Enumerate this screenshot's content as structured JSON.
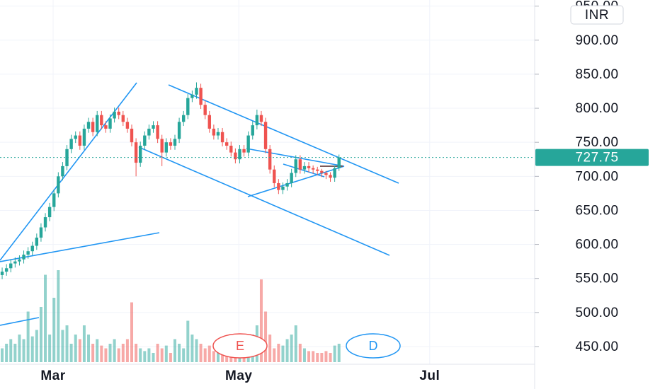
{
  "chart_data": {
    "type": "candlestick",
    "currency": "INR",
    "events": [
      "E",
      "D"
    ],
    "up_color": "#26a69a",
    "down_color": "#ef5350",
    "grid": true,
    "x": [
      0,
      1,
      2,
      3,
      4,
      5,
      6,
      7,
      8,
      9,
      10,
      11,
      12,
      13,
      14,
      15,
      16,
      17,
      18,
      19,
      20,
      21,
      22,
      23,
      24,
      25,
      26,
      27,
      28,
      29,
      30,
      31,
      32,
      33,
      34,
      35,
      36,
      37,
      38,
      39,
      40,
      41,
      42,
      43,
      44,
      45,
      46,
      47,
      48,
      49,
      50,
      51,
      52,
      53,
      54,
      55,
      56,
      57,
      58,
      59,
      60,
      61,
      62,
      63,
      64,
      65,
      66,
      67,
      68,
      69,
      70,
      71,
      72,
      73,
      74,
      75,
      76,
      77,
      78
    ],
    "open": [
      555,
      560,
      565,
      572,
      575,
      578,
      585,
      590,
      598,
      610,
      625,
      640,
      655,
      675,
      700,
      715,
      740,
      755,
      760,
      745,
      770,
      780,
      765,
      790,
      775,
      770,
      785,
      795,
      790,
      780,
      770,
      750,
      720,
      745,
      760,
      770,
      775,
      755,
      735,
      750,
      745,
      755,
      780,
      790,
      815,
      820,
      830,
      805,
      790,
      770,
      760,
      765,
      750,
      745,
      735,
      725,
      740,
      735,
      760,
      775,
      790,
      780,
      740,
      710,
      690,
      680,
      685,
      690,
      705,
      725,
      710,
      715,
      712,
      710,
      708,
      705,
      702,
      698,
      712
    ],
    "high": [
      566,
      571,
      578,
      581,
      584,
      591,
      596,
      604,
      616,
      631,
      646,
      661,
      681,
      706,
      721,
      746,
      761,
      766,
      766,
      776,
      786,
      786,
      796,
      796,
      781,
      791,
      801,
      801,
      796,
      786,
      776,
      756,
      751,
      766,
      776,
      781,
      781,
      761,
      756,
      756,
      761,
      786,
      796,
      821,
      826,
      838,
      836,
      811,
      796,
      776,
      771,
      771,
      756,
      751,
      741,
      746,
      746,
      766,
      781,
      798,
      796,
      786,
      746,
      716,
      696,
      691,
      696,
      711,
      731,
      731,
      721,
      721,
      716,
      714,
      711,
      708,
      706,
      716,
      732
    ],
    "low": [
      549,
      554,
      559,
      566,
      569,
      572,
      579,
      584,
      592,
      604,
      619,
      634,
      649,
      669,
      694,
      709,
      734,
      749,
      739,
      739,
      764,
      759,
      759,
      769,
      764,
      764,
      779,
      784,
      774,
      764,
      744,
      700,
      714,
      739,
      754,
      764,
      749,
      715,
      729,
      739,
      739,
      749,
      774,
      784,
      809,
      814,
      799,
      784,
      764,
      754,
      754,
      744,
      739,
      729,
      719,
      719,
      729,
      729,
      754,
      769,
      774,
      734,
      704,
      684,
      674,
      674,
      679,
      684,
      699,
      704,
      704,
      706,
      704,
      702,
      699,
      696,
      692,
      692,
      708
    ],
    "close": [
      560,
      565,
      572,
      575,
      578,
      585,
      590,
      598,
      610,
      625,
      640,
      655,
      675,
      700,
      715,
      740,
      755,
      760,
      745,
      770,
      780,
      765,
      790,
      775,
      770,
      785,
      795,
      790,
      780,
      770,
      750,
      720,
      745,
      760,
      770,
      775,
      755,
      735,
      750,
      745,
      755,
      780,
      790,
      815,
      820,
      830,
      805,
      790,
      770,
      760,
      765,
      750,
      745,
      735,
      725,
      740,
      735,
      760,
      775,
      790,
      780,
      740,
      710,
      690,
      680,
      685,
      690,
      705,
      725,
      710,
      715,
      712,
      710,
      708,
      705,
      702,
      698,
      712,
      727.75
    ],
    "volume": [
      15,
      20,
      25,
      20,
      30,
      25,
      55,
      28,
      35,
      60,
      95,
      30,
      70,
      100,
      35,
      40,
      20,
      30,
      25,
      40,
      30,
      20,
      25,
      18,
      15,
      20,
      25,
      15,
      20,
      25,
      65,
      20,
      15,
      12,
      15,
      10,
      20,
      15,
      18,
      10,
      25,
      20,
      15,
      45,
      30,
      25,
      20,
      15,
      18,
      12,
      15,
      12,
      18,
      10,
      12,
      10,
      15,
      25,
      30,
      40,
      90,
      55,
      30,
      15,
      20,
      18,
      25,
      30,
      40,
      20,
      15,
      12,
      12,
      10,
      10,
      12,
      10,
      18,
      20
    ],
    "xlim": [
      -0.5,
      123.3
    ],
    "xticks": [
      {
        "value": 11.8,
        "label": "Mar"
      },
      {
        "value": 54.8,
        "label": "May"
      },
      {
        "value": 99,
        "label": "Jul"
      }
    ],
    "ylim": [
      424,
      959
    ],
    "yticks": [
      {
        "value": 450,
        "label": "450.00"
      },
      {
        "value": 500,
        "label": "500.00"
      },
      {
        "value": 550,
        "label": "550.00"
      },
      {
        "value": 600,
        "label": "600.00"
      },
      {
        "value": 650,
        "label": "650.00"
      },
      {
        "value": 700,
        "label": "700.00"
      },
      {
        "value": 750,
        "label": "750.00"
      },
      {
        "value": 800,
        "label": "800.00"
      },
      {
        "value": 850,
        "label": "850.00"
      },
      {
        "value": 900,
        "label": "900.00"
      },
      {
        "value": 950,
        "label": "950.00"
      }
    ]
  }
}
